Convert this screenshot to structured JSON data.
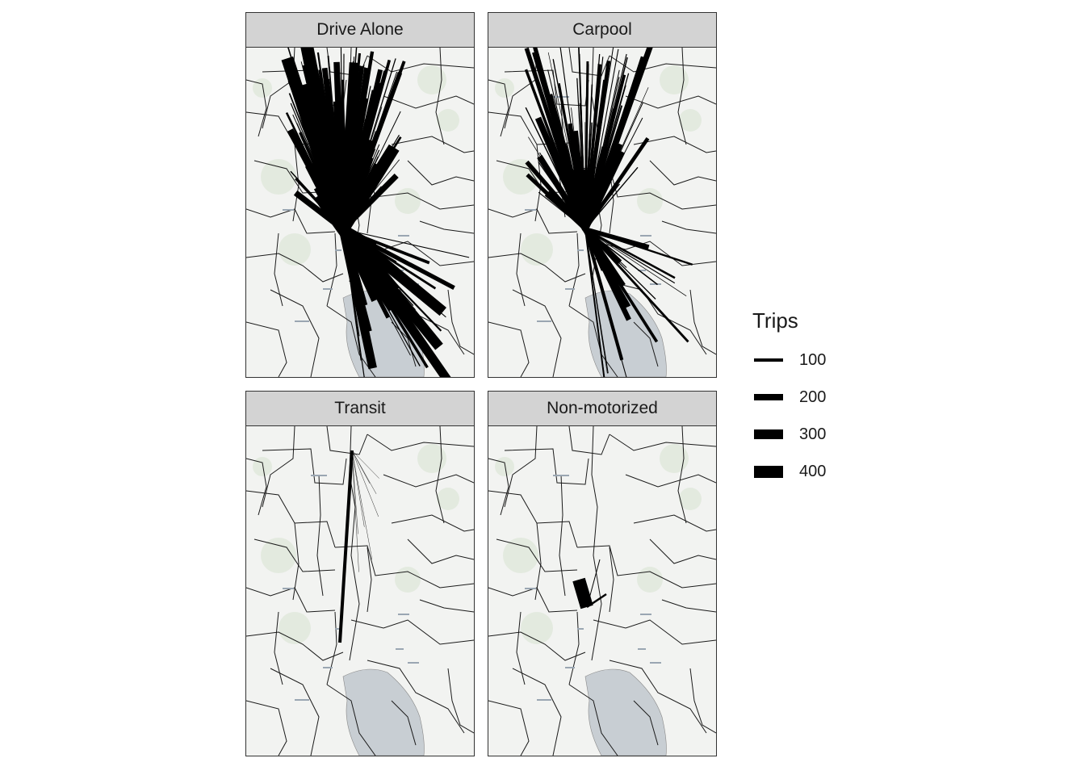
{
  "panels": [
    {
      "label": "Drive Alone"
    },
    {
      "label": "Carpool"
    },
    {
      "label": "Transit"
    },
    {
      "label": "Non-motorized"
    }
  ],
  "legend": {
    "title": "Trips",
    "items": [
      {
        "label": "100",
        "value": 100
      },
      {
        "label": "200",
        "value": 200
      },
      {
        "label": "300",
        "value": 300
      },
      {
        "label": "400",
        "value": 400
      }
    ]
  },
  "colors": {
    "strip_fill": "#d3d3d3",
    "land": "#f2f3f1",
    "water": "#c8ced3",
    "boundary": "#1a1a1a",
    "flow": "#000000"
  }
}
